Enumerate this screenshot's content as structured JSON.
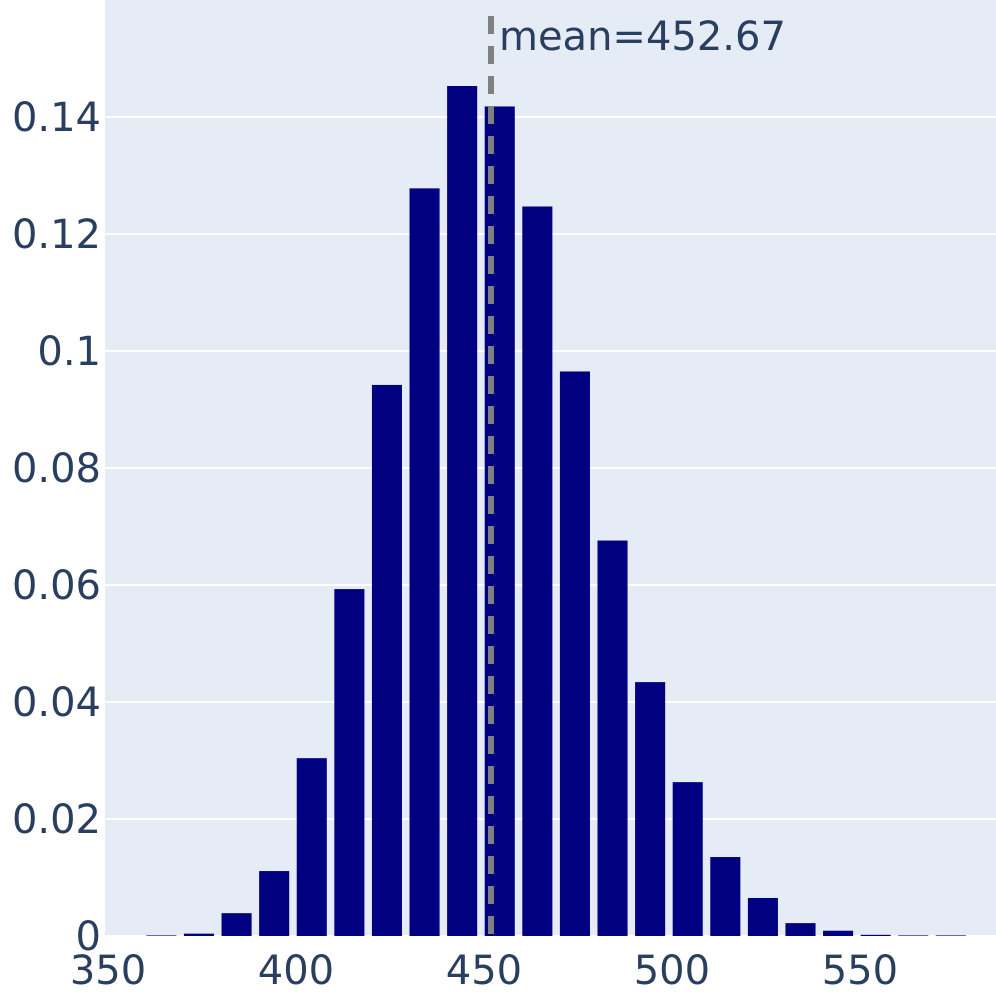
{
  "chart_data": {
    "type": "bar",
    "x_bin_centers": [
      355,
      365,
      375,
      385,
      395,
      405,
      415,
      425,
      435,
      445,
      455,
      465,
      475,
      485,
      495,
      505,
      515,
      525,
      535,
      545,
      555,
      565,
      575
    ],
    "values": [
      0,
      0.0001,
      0.0004,
      0.0039,
      0.0111,
      0.0304,
      0.0593,
      0.0942,
      0.1278,
      0.1453,
      0.1418,
      0.1247,
      0.0965,
      0.0676,
      0.0434,
      0.0263,
      0.0135,
      0.0065,
      0.0022,
      0.0009,
      0.0002,
      0.0001,
      0.0001
    ],
    "bin_width": 10,
    "xlim": [
      350,
      587
    ],
    "ylim": [
      0,
      0.16
    ],
    "x_ticks": [
      350,
      400,
      450,
      500,
      550
    ],
    "x_tick_labels": [
      "350",
      "400",
      "450",
      "500",
      "550"
    ],
    "y_ticks": [
      0,
      0.02,
      0.04,
      0.06,
      0.08,
      0.1,
      0.12,
      0.14
    ],
    "y_tick_labels": [
      "0",
      "0.02",
      "0.04",
      "0.06",
      "0.08",
      "0.1",
      "0.12",
      "0.14"
    ],
    "grid": true,
    "mean_line": {
      "x": 452.67,
      "label": "mean=452.67"
    }
  },
  "colors": {
    "bar": "#000080",
    "plot_background": "#e5ecf6",
    "grid": "#ffffff",
    "mean_line": "#808080",
    "text": "#2a3f5f"
  }
}
